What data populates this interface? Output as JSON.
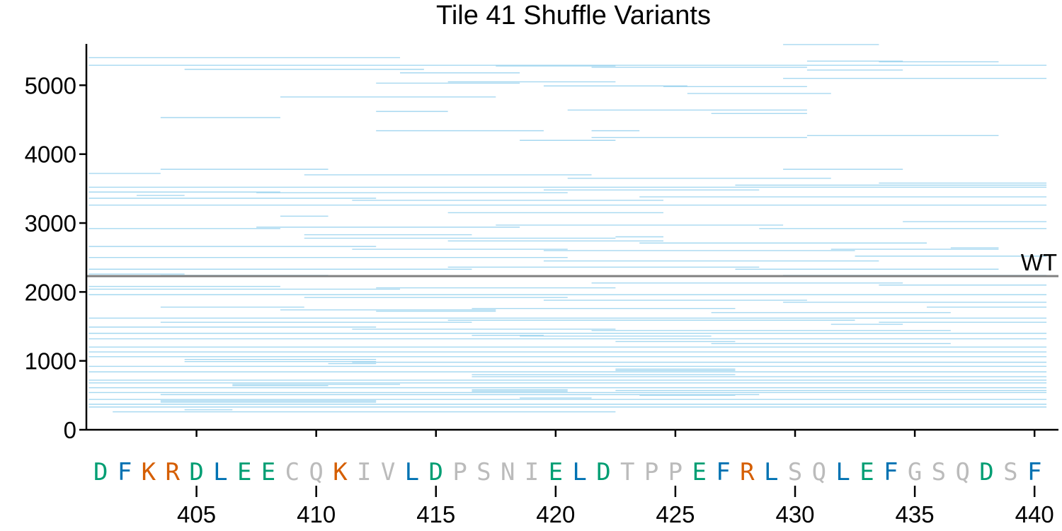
{
  "chart_data": {
    "type": "line",
    "title": "Tile 41 Shuffle Variants",
    "xlabel": "",
    "ylabel": "",
    "xlim": [
      400.4,
      441
    ],
    "ylim": [
      0,
      5600
    ],
    "x_ticks": [
      405,
      410,
      415,
      420,
      425,
      430,
      435,
      440
    ],
    "y_ticks": [
      0,
      1000,
      2000,
      3000,
      4000,
      5000
    ],
    "grid": false,
    "reference_line": {
      "label": "WT",
      "y": 2230,
      "color": "#808080"
    },
    "segment_color": "#a6d8f0",
    "sequence": {
      "start_position": 401,
      "residues": [
        "D",
        "F",
        "K",
        "R",
        "D",
        "L",
        "E",
        "E",
        "C",
        "Q",
        "K",
        "I",
        "V",
        "L",
        "D",
        "P",
        "S",
        "N",
        "I",
        "E",
        "L",
        "D",
        "T",
        "P",
        "P",
        "E",
        "F",
        "R",
        "L",
        "S",
        "Q",
        "L",
        "E",
        "F",
        "G",
        "S",
        "Q",
        "D",
        "S",
        "F"
      ],
      "classes": [
        "acidic",
        "hydrophobic",
        "basic",
        "basic",
        "acidic",
        "hydrophobic",
        "acidic",
        "acidic",
        "other",
        "other",
        "basic",
        "other",
        "other",
        "hydrophobic",
        "acidic",
        "other",
        "other",
        "other",
        "other",
        "acidic",
        "hydrophobic",
        "acidic",
        "other",
        "other",
        "other",
        "acidic",
        "hydrophobic",
        "basic",
        "hydrophobic",
        "other",
        "other",
        "hydrophobic",
        "acidic",
        "hydrophobic",
        "other",
        "other",
        "other",
        "acidic",
        "other",
        "hydrophobic"
      ],
      "class_colors": {
        "acidic": "#009e73",
        "basic": "#d55e00",
        "hydrophobic": "#0072b2",
        "other": "#bbbbbb"
      }
    },
    "segments": [
      {
        "start": 401,
        "end": 413,
        "y": 5400
      },
      {
        "start": 401,
        "end": 440,
        "y": 5290
      },
      {
        "start": 405,
        "end": 414,
        "y": 5230
      },
      {
        "start": 414,
        "end": 418,
        "y": 5180
      },
      {
        "start": 418,
        "end": 422,
        "y": 5280
      },
      {
        "start": 422,
        "end": 430,
        "y": 5260
      },
      {
        "start": 430,
        "end": 433,
        "y": 5590
      },
      {
        "start": 431,
        "end": 434,
        "y": 5350
      },
      {
        "start": 434,
        "end": 438,
        "y": 5340
      },
      {
        "start": 404,
        "end": 408,
        "y": 4530
      },
      {
        "start": 409,
        "end": 417,
        "y": 4830
      },
      {
        "start": 413,
        "end": 418,
        "y": 5030
      },
      {
        "start": 413,
        "end": 415,
        "y": 4620
      },
      {
        "start": 416,
        "end": 422,
        "y": 5050
      },
      {
        "start": 420,
        "end": 425,
        "y": 4990
      },
      {
        "start": 425,
        "end": 430,
        "y": 4980
      },
      {
        "start": 426,
        "end": 431,
        "y": 4880
      },
      {
        "start": 431,
        "end": 434,
        "y": 5220
      },
      {
        "start": 421,
        "end": 430,
        "y": 4640
      },
      {
        "start": 422,
        "end": 423,
        "y": 4340
      },
      {
        "start": 427,
        "end": 430,
        "y": 4590
      },
      {
        "start": 413,
        "end": 419,
        "y": 4340
      },
      {
        "start": 419,
        "end": 422,
        "y": 4200
      },
      {
        "start": 422,
        "end": 430,
        "y": 4240
      },
      {
        "start": 431,
        "end": 438,
        "y": 4270
      },
      {
        "start": 430,
        "end": 440,
        "y": 5100
      },
      {
        "start": 401,
        "end": 403,
        "y": 3720
      },
      {
        "start": 404,
        "end": 410,
        "y": 3780
      },
      {
        "start": 410,
        "end": 421,
        "y": 3700
      },
      {
        "start": 421,
        "end": 431,
        "y": 3650
      },
      {
        "start": 430,
        "end": 434,
        "y": 3780
      },
      {
        "start": 434,
        "end": 440,
        "y": 3580
      },
      {
        "start": 401,
        "end": 440,
        "y": 3520
      },
      {
        "start": 401,
        "end": 408,
        "y": 3450
      },
      {
        "start": 403,
        "end": 404,
        "y": 3400
      },
      {
        "start": 408,
        "end": 420,
        "y": 3440
      },
      {
        "start": 420,
        "end": 428,
        "y": 3480
      },
      {
        "start": 428,
        "end": 440,
        "y": 3550
      },
      {
        "start": 401,
        "end": 412,
        "y": 3360
      },
      {
        "start": 412,
        "end": 424,
        "y": 3330
      },
      {
        "start": 424,
        "end": 440,
        "y": 3380
      },
      {
        "start": 401,
        "end": 440,
        "y": 3260
      },
      {
        "start": 409,
        "end": 410,
        "y": 3100
      },
      {
        "start": 416,
        "end": 424,
        "y": 3150
      },
      {
        "start": 401,
        "end": 408,
        "y": 2920
      },
      {
        "start": 408,
        "end": 418,
        "y": 2940
      },
      {
        "start": 418,
        "end": 429,
        "y": 2970
      },
      {
        "start": 429,
        "end": 440,
        "y": 2920
      },
      {
        "start": 410,
        "end": 422,
        "y": 2780
      },
      {
        "start": 410,
        "end": 416,
        "y": 2830
      },
      {
        "start": 416,
        "end": 424,
        "y": 2740
      },
      {
        "start": 423,
        "end": 424,
        "y": 2800
      },
      {
        "start": 424,
        "end": 435,
        "y": 2710
      },
      {
        "start": 435,
        "end": 440,
        "y": 3020
      },
      {
        "start": 401,
        "end": 412,
        "y": 2660
      },
      {
        "start": 412,
        "end": 420,
        "y": 2620
      },
      {
        "start": 420,
        "end": 432,
        "y": 2600
      },
      {
        "start": 432,
        "end": 438,
        "y": 2620
      },
      {
        "start": 437,
        "end": 438,
        "y": 2640
      },
      {
        "start": 401,
        "end": 420,
        "y": 2500
      },
      {
        "start": 420,
        "end": 433,
        "y": 2450
      },
      {
        "start": 433,
        "end": 440,
        "y": 2520
      },
      {
        "start": 401,
        "end": 416,
        "y": 2330
      },
      {
        "start": 416,
        "end": 428,
        "y": 2360
      },
      {
        "start": 428,
        "end": 438,
        "y": 2330
      },
      {
        "start": 401,
        "end": 404,
        "y": 2260
      },
      {
        "start": 404,
        "end": 410,
        "y": 2240
      },
      {
        "start": 430,
        "end": 440,
        "y": 2240
      },
      {
        "start": 401,
        "end": 408,
        "y": 2080
      },
      {
        "start": 401,
        "end": 413,
        "y": 2040
      },
      {
        "start": 413,
        "end": 422,
        "y": 2060
      },
      {
        "start": 422,
        "end": 434,
        "y": 2130
      },
      {
        "start": 434,
        "end": 440,
        "y": 2100
      },
      {
        "start": 401,
        "end": 440,
        "y": 1960
      },
      {
        "start": 410,
        "end": 420,
        "y": 1920
      },
      {
        "start": 420,
        "end": 430,
        "y": 1880
      },
      {
        "start": 430,
        "end": 440,
        "y": 1850
      },
      {
        "start": 404,
        "end": 409,
        "y": 1780
      },
      {
        "start": 409,
        "end": 417,
        "y": 1740
      },
      {
        "start": 413,
        "end": 417,
        "y": 1720
      },
      {
        "start": 417,
        "end": 427,
        "y": 1760
      },
      {
        "start": 427,
        "end": 436,
        "y": 1700
      },
      {
        "start": 436,
        "end": 440,
        "y": 1780
      },
      {
        "start": 401,
        "end": 440,
        "y": 1620
      },
      {
        "start": 404,
        "end": 416,
        "y": 1560
      },
      {
        "start": 416,
        "end": 432,
        "y": 1590
      },
      {
        "start": 432,
        "end": 434,
        "y": 1530
      },
      {
        "start": 434,
        "end": 440,
        "y": 1560
      },
      {
        "start": 401,
        "end": 412,
        "y": 1490
      },
      {
        "start": 412,
        "end": 422,
        "y": 1460
      },
      {
        "start": 422,
        "end": 436,
        "y": 1440
      },
      {
        "start": 401,
        "end": 440,
        "y": 1400
      },
      {
        "start": 417,
        "end": 419,
        "y": 1370
      },
      {
        "start": 419,
        "end": 426,
        "y": 1360
      },
      {
        "start": 401,
        "end": 440,
        "y": 1320
      },
      {
        "start": 423,
        "end": 427,
        "y": 1280
      },
      {
        "start": 427,
        "end": 436,
        "y": 1250
      },
      {
        "start": 401,
        "end": 440,
        "y": 1200
      },
      {
        "start": 401,
        "end": 440,
        "y": 1130
      },
      {
        "start": 401,
        "end": 440,
        "y": 1060
      },
      {
        "start": 405,
        "end": 412,
        "y": 1020
      },
      {
        "start": 405,
        "end": 412,
        "y": 990
      },
      {
        "start": 411,
        "end": 412,
        "y": 960
      },
      {
        "start": 412,
        "end": 440,
        "y": 980
      },
      {
        "start": 401,
        "end": 440,
        "y": 920
      },
      {
        "start": 423,
        "end": 427,
        "y": 880
      },
      {
        "start": 423,
        "end": 427,
        "y": 860
      },
      {
        "start": 401,
        "end": 440,
        "y": 840
      },
      {
        "start": 417,
        "end": 427,
        "y": 800
      },
      {
        "start": 417,
        "end": 440,
        "y": 770
      },
      {
        "start": 401,
        "end": 440,
        "y": 720
      },
      {
        "start": 401,
        "end": 440,
        "y": 680
      },
      {
        "start": 407,
        "end": 413,
        "y": 660
      },
      {
        "start": 407,
        "end": 410,
        "y": 640
      },
      {
        "start": 401,
        "end": 440,
        "y": 610
      },
      {
        "start": 417,
        "end": 420,
        "y": 580
      },
      {
        "start": 417,
        "end": 420,
        "y": 560
      },
      {
        "start": 423,
        "end": 440,
        "y": 570
      },
      {
        "start": 401,
        "end": 440,
        "y": 540
      },
      {
        "start": 404,
        "end": 428,
        "y": 510
      },
      {
        "start": 424,
        "end": 427,
        "y": 500
      },
      {
        "start": 419,
        "end": 421,
        "y": 460
      },
      {
        "start": 401,
        "end": 440,
        "y": 440
      },
      {
        "start": 404,
        "end": 412,
        "y": 420
      },
      {
        "start": 404,
        "end": 412,
        "y": 400
      },
      {
        "start": 401,
        "end": 440,
        "y": 370
      },
      {
        "start": 401,
        "end": 440,
        "y": 330
      },
      {
        "start": 405,
        "end": 406,
        "y": 290
      },
      {
        "start": 402,
        "end": 422,
        "y": 260
      }
    ]
  }
}
